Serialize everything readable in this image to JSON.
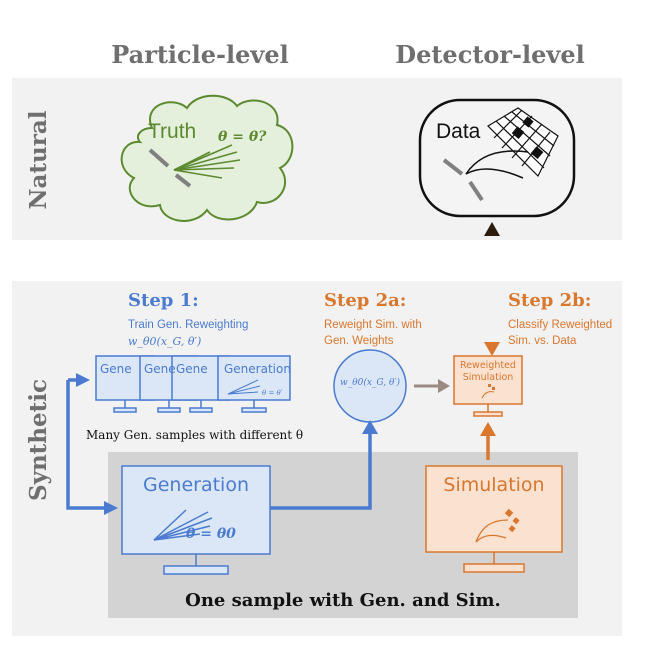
{
  "columns": {
    "particle_level": "Particle-level",
    "detector_level": "Detector-level"
  },
  "rows": {
    "natural": "Natural",
    "synthetic": "Synthetic"
  },
  "truth": {
    "label": "Truth",
    "theta": "θ = θ?"
  },
  "data": {
    "label": "Data"
  },
  "step1": {
    "title": "Step 1:",
    "line1": "Train Gen. Reweighting",
    "line2": "w_θ0(x_G, θ′)"
  },
  "step2a": {
    "title": "Step 2a:",
    "line1": "Reweight Sim. with",
    "line2": "Gen. Weights"
  },
  "step2b": {
    "title": "Step 2b:",
    "line1": "Classify Reweighted",
    "line2": "Sim. vs. Data"
  },
  "monitors": {
    "small_label": "Gene",
    "generation_small": "Generation",
    "theta_prime": "θ = θ′",
    "caption": "Many Gen. samples with different θ"
  },
  "weight_circle": {
    "label": "w_θ0(x_G, θ′)"
  },
  "reweighted": {
    "line1": "Reweighted",
    "line2": "Simulation"
  },
  "generation": {
    "label": "Generation",
    "theta": "θ = θ0"
  },
  "simulation": {
    "label": "Simulation"
  },
  "bottom_caption": "One sample with Gen. and Sim.",
  "colors": {
    "blue": "#4a7bd0",
    "blue_fill": "#dbe7f7",
    "orange": "#d9772e",
    "orange_fill": "#fbe1cf",
    "green": "#5b8a2f",
    "green_fill": "#e5f0dc",
    "gray_text": "#6f6f6f",
    "panel": "#f2f2f2",
    "dark_panel": "#d3d3d3"
  }
}
